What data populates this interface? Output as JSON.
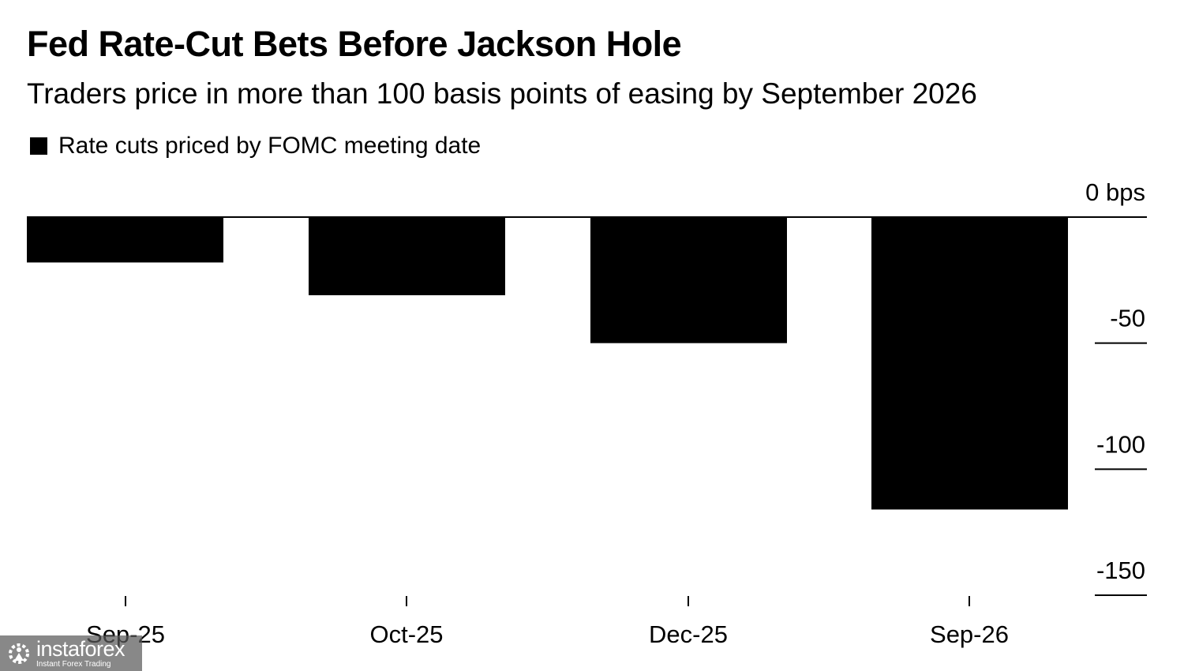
{
  "chart_data": {
    "type": "bar",
    "title": "Fed Rate-Cut Bets Before Jackson Hole",
    "subtitle": "Traders price in more than 100 basis points of easing by September 2026",
    "categories": [
      "Sep-25",
      "Oct-25",
      "Dec-25",
      "Sep-26"
    ],
    "series": [
      {
        "name": "Rate cuts priced by FOMC meeting date",
        "values": [
          -18,
          -31,
          -50,
          -116
        ],
        "color": "#000000"
      }
    ],
    "ylim": [
      -150,
      0
    ],
    "yticks": [
      0,
      -50,
      -100,
      -150
    ],
    "ytick_labels": [
      "0 bps",
      "-50",
      "-100",
      "-150"
    ],
    "y_axis_side": "right",
    "grid": false,
    "legend_position": "top-left"
  },
  "watermark": {
    "name": "instaforex",
    "tagline": "Instant Forex Trading"
  }
}
